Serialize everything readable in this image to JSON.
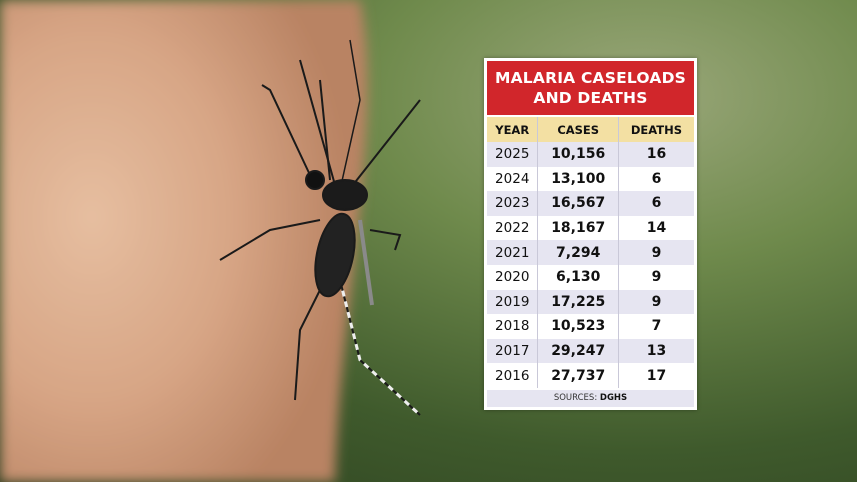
{
  "header": {
    "title": [
      "MALARIA CASELOADS",
      "AND DEATHS"
    ]
  },
  "table": {
    "columns": [
      "YEAR",
      "CASES",
      "DEATHS"
    ],
    "rows": [
      [
        "2025",
        "10,156",
        "16"
      ],
      [
        "2024",
        "13,100",
        "6"
      ],
      [
        "2023",
        "16,567",
        "6"
      ],
      [
        "2022",
        "18,167",
        "14"
      ],
      [
        "2021",
        "7,294",
        "9"
      ],
      [
        "2020",
        "6,130",
        "9"
      ],
      [
        "2019",
        "17,225",
        "9"
      ],
      [
        "2018",
        "10,523",
        "7"
      ],
      [
        "2017",
        "29,247",
        "13"
      ],
      [
        "2016",
        "27,737",
        "17"
      ]
    ]
  },
  "footer": {
    "source_label": "SOURCES:",
    "source": "DGHS"
  }
}
